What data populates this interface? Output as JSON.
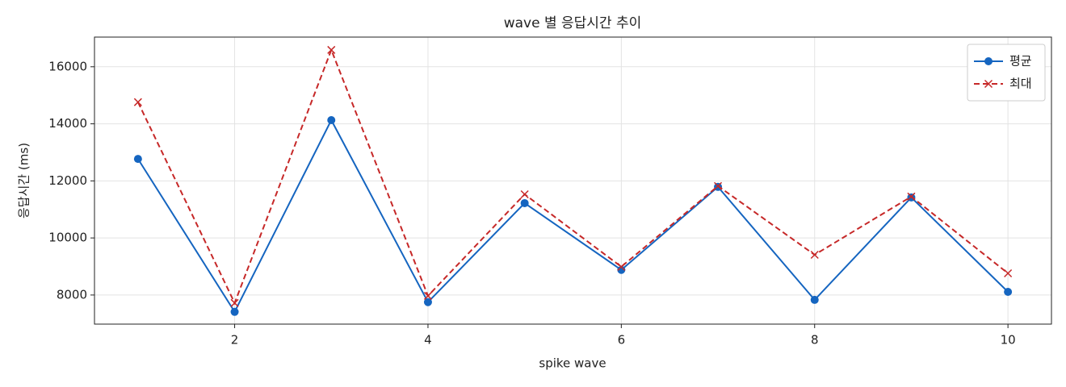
{
  "chart_data": {
    "type": "line",
    "title": "wave 별 응답시간 추이",
    "x_label": "spike wave",
    "y_label": "응답시간 (ms)",
    "x": [
      1,
      2,
      3,
      4,
      5,
      6,
      7,
      8,
      9,
      10
    ],
    "series": [
      {
        "name": "평균",
        "color": "#1565c0",
        "marker": "o",
        "linestyle": "solid",
        "values": [
          12770,
          7410,
          14130,
          7750,
          11220,
          8880,
          11790,
          7830,
          11420,
          8110
        ]
      },
      {
        "name": "최대",
        "color": "#c62828",
        "marker": "x",
        "linestyle": "dashed",
        "values": [
          14760,
          7720,
          16590,
          7970,
          11530,
          8990,
          11820,
          9410,
          11450,
          8760
        ]
      }
    ],
    "xlim": [
      0.55,
      10.45
    ],
    "ylim": [
      6980,
      17040
    ],
    "xticks": [
      2,
      4,
      6,
      8,
      10
    ],
    "yticks": [
      8000,
      10000,
      12000,
      14000,
      16000
    ],
    "grid": true,
    "legend": "upper right"
  }
}
